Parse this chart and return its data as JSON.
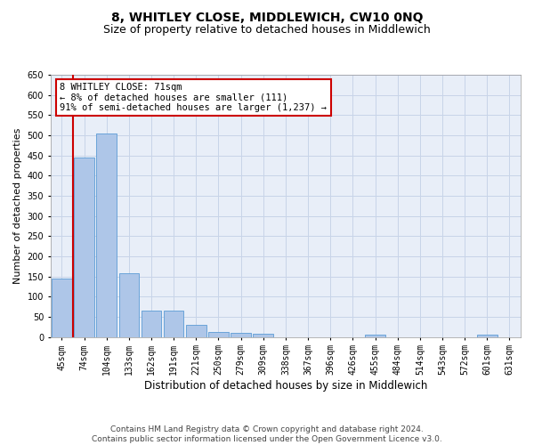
{
  "title": "8, WHITLEY CLOSE, MIDDLEWICH, CW10 0NQ",
  "subtitle": "Size of property relative to detached houses in Middlewich",
  "xlabel": "Distribution of detached houses by size in Middlewich",
  "ylabel": "Number of detached properties",
  "categories": [
    "45sqm",
    "74sqm",
    "104sqm",
    "133sqm",
    "162sqm",
    "191sqm",
    "221sqm",
    "250sqm",
    "279sqm",
    "309sqm",
    "338sqm",
    "367sqm",
    "396sqm",
    "426sqm",
    "455sqm",
    "484sqm",
    "514sqm",
    "543sqm",
    "572sqm",
    "601sqm",
    "631sqm"
  ],
  "values": [
    145,
    445,
    505,
    158,
    65,
    65,
    30,
    13,
    9,
    7,
    0,
    0,
    0,
    0,
    5,
    0,
    0,
    0,
    0,
    6,
    0
  ],
  "bar_color": "#aec6e8",
  "bar_edge_color": "#5b9bd5",
  "annotation_text": "8 WHITLEY CLOSE: 71sqm\n← 8% of detached houses are smaller (111)\n91% of semi-detached houses are larger (1,237) →",
  "annotation_box_color": "#ffffff",
  "annotation_box_edge_color": "#cc0000",
  "vline_color": "#cc0000",
  "vline_x": 0.5,
  "ylim": [
    0,
    650
  ],
  "yticks": [
    0,
    50,
    100,
    150,
    200,
    250,
    300,
    350,
    400,
    450,
    500,
    550,
    600,
    650
  ],
  "grid_color": "#c8d4e8",
  "background_color": "#e8eef8",
  "footer_line1": "Contains HM Land Registry data © Crown copyright and database right 2024.",
  "footer_line2": "Contains public sector information licensed under the Open Government Licence v3.0.",
  "title_fontsize": 10,
  "subtitle_fontsize": 9,
  "xlabel_fontsize": 8.5,
  "ylabel_fontsize": 8,
  "tick_fontsize": 7,
  "footer_fontsize": 6.5,
  "annotation_fontsize": 7.5
}
